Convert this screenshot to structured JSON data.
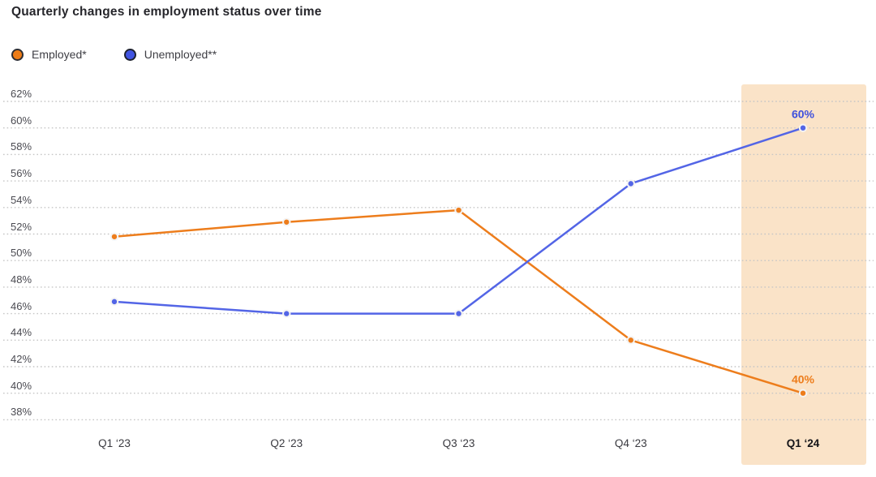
{
  "title": "Quarterly changes in employment status over time",
  "legend": {
    "items": [
      {
        "label": "Employed*",
        "color": "#ED7C17",
        "ring_color": "#2E2E33"
      },
      {
        "label": "Unemployed**",
        "color": "#4154E2",
        "ring_color": "#1E2230"
      }
    ]
  },
  "chart_data": {
    "type": "line",
    "title": "Quarterly changes in employment status over time",
    "categories": [
      "Q1 ‘23",
      "Q2 ‘23",
      "Q3 ‘23",
      "Q4 ‘23",
      "Q1 ‘24"
    ],
    "series": [
      {
        "name": "Employed*",
        "color": "#ED7D1C",
        "values": [
          51.8,
          52.9,
          53.8,
          44,
          40
        ]
      },
      {
        "name": "Unemployed**",
        "color": "#5365E6",
        "values": [
          46.9,
          46,
          46,
          55.8,
          60
        ]
      }
    ],
    "ylim": [
      38,
      62
    ],
    "ytick_step": 2,
    "ytick_suffix": "%",
    "xlabel": "",
    "ylabel": "",
    "grid": "horizontal-dotted",
    "legend_position": "top-left",
    "highlight": {
      "category": "Q1 ‘24",
      "color": "#FAE3C8"
    },
    "point_labels": [
      {
        "series": "Unemployed**",
        "category": "Q1 ‘24",
        "text": "60%",
        "color": "#3F51DD"
      },
      {
        "series": "Employed*",
        "category": "Q1 ‘24",
        "text": "40%",
        "color": "#ED7D1C"
      }
    ]
  },
  "colors": {
    "background": "#FFFFFF",
    "gridline": "#C6C6C6",
    "axis_text": "#4B4B52",
    "title_text": "#26262B",
    "xtick_highlight_text": "#141418"
  }
}
